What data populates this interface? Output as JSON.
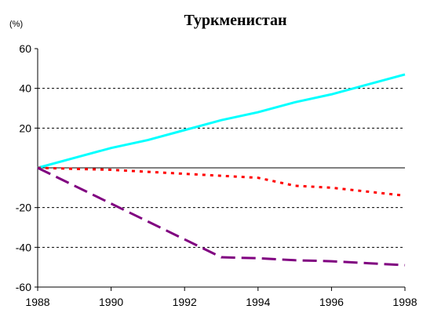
{
  "chart_data": {
    "type": "line",
    "title": "Туркменистан",
    "y_label": "(%)",
    "x": [
      1988,
      1989,
      1990,
      1991,
      1992,
      1993,
      1994,
      1995,
      1996,
      1997,
      1998
    ],
    "series": [
      {
        "color": "#00ffff",
        "dash": "solid",
        "values": [
          0,
          5,
          10,
          14,
          19,
          24,
          28,
          33,
          37,
          42,
          47
        ]
      },
      {
        "color": "#ff0000",
        "dash": "dotted",
        "values": [
          0,
          -0.5,
          -1,
          -2,
          -3,
          -4,
          -5,
          -9,
          -10,
          -12,
          -14
        ]
      },
      {
        "color": "#800080",
        "dash": "dashed",
        "values": [
          0,
          -9,
          -18,
          -27,
          -36,
          -45,
          -45.5,
          -46.5,
          -47,
          -48,
          -49
        ]
      }
    ],
    "xlim": [
      1988,
      1998
    ],
    "xticks": [
      1988,
      1990,
      1992,
      1994,
      1996,
      1998
    ],
    "ylim": [
      -60,
      60
    ],
    "yticks": [
      -60,
      -40,
      -20,
      20,
      40,
      60
    ],
    "grid": true
  }
}
